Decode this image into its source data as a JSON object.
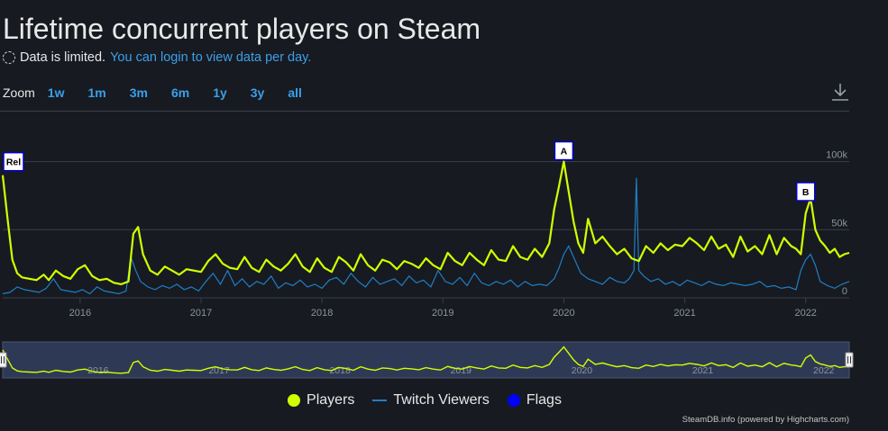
{
  "page": {
    "title": "Lifetime concurrent players on Steam",
    "limited_text": "Data is limited.",
    "login_link": "You can login to view data per day."
  },
  "zoom": {
    "label": "Zoom",
    "buttons": [
      "1w",
      "1m",
      "3m",
      "6m",
      "1y",
      "3y",
      "all"
    ]
  },
  "legend": {
    "players": "Players",
    "twitch": "Twitch Viewers",
    "flags": "Flags"
  },
  "credits": "SteamDB.info (powered by Highcharts.com)",
  "colors": {
    "background": "#171a21",
    "players": "#d2ff00",
    "twitch": "#1f7fc4",
    "flags_dot": "#0000ff",
    "link": "#3ba0e8",
    "grid": "#3a3f48"
  },
  "chart_data": {
    "type": "line",
    "title": "Lifetime concurrent players on Steam",
    "xlabel": "",
    "ylabel": "",
    "ylim": [
      0,
      105000
    ],
    "xlim": [
      2015.36,
      2022.36
    ],
    "y_ticks": [
      {
        "value": 0,
        "label": "0"
      },
      {
        "value": 50000,
        "label": "50k"
      },
      {
        "value": 100000,
        "label": "100k"
      }
    ],
    "x_ticks": [
      {
        "value": 2016,
        "label": "2016"
      },
      {
        "value": 2017,
        "label": "2017"
      },
      {
        "value": 2018,
        "label": "2018"
      },
      {
        "value": 2019,
        "label": "2019"
      },
      {
        "value": 2020,
        "label": "2020"
      },
      {
        "value": 2021,
        "label": "2021"
      },
      {
        "value": 2022,
        "label": "2022"
      }
    ],
    "series": [
      {
        "name": "Players",
        "x": [
          2015.36,
          2015.4,
          2015.44,
          2015.48,
          2015.52,
          2015.58,
          2015.64,
          2015.7,
          2015.74,
          2015.8,
          2015.86,
          2015.92,
          2015.98,
          2016.04,
          2016.1,
          2016.16,
          2016.22,
          2016.28,
          2016.34,
          2016.4,
          2016.42,
          2016.44,
          2016.48,
          2016.52,
          2016.58,
          2016.64,
          2016.7,
          2016.76,
          2016.82,
          2016.88,
          2016.94,
          2017.0,
          2017.06,
          2017.12,
          2017.18,
          2017.24,
          2017.3,
          2017.36,
          2017.42,
          2017.48,
          2017.54,
          2017.6,
          2017.66,
          2017.72,
          2017.78,
          2017.84,
          2017.9,
          2017.96,
          2018.02,
          2018.08,
          2018.14,
          2018.2,
          2018.26,
          2018.32,
          2018.38,
          2018.44,
          2018.5,
          2018.56,
          2018.62,
          2018.68,
          2018.74,
          2018.8,
          2018.86,
          2018.92,
          2018.98,
          2019.04,
          2019.1,
          2019.16,
          2019.22,
          2019.28,
          2019.34,
          2019.4,
          2019.46,
          2019.52,
          2019.58,
          2019.64,
          2019.7,
          2019.76,
          2019.82,
          2019.88,
          2019.92,
          2019.96,
          2020.0,
          2020.04,
          2020.08,
          2020.12,
          2020.16,
          2020.2,
          2020.26,
          2020.32,
          2020.38,
          2020.44,
          2020.5,
          2020.56,
          2020.62,
          2020.68,
          2020.74,
          2020.8,
          2020.86,
          2020.92,
          2020.98,
          2021.04,
          2021.1,
          2021.16,
          2021.22,
          2021.28,
          2021.34,
          2021.4,
          2021.46,
          2021.52,
          2021.58,
          2021.64,
          2021.7,
          2021.76,
          2021.82,
          2021.88,
          2021.92,
          2021.96,
          2022.0,
          2022.04,
          2022.08,
          2022.12,
          2022.16,
          2022.2,
          2022.24,
          2022.28,
          2022.32,
          2022.36
        ],
        "values": [
          90000,
          58000,
          28000,
          18000,
          15000,
          14000,
          13000,
          17000,
          13000,
          20000,
          16000,
          14000,
          21000,
          24000,
          16000,
          13000,
          14000,
          11000,
          10000,
          12000,
          30000,
          47000,
          52000,
          32000,
          20000,
          17000,
          23000,
          20000,
          17000,
          21000,
          20000,
          19000,
          27000,
          32000,
          25000,
          22000,
          21000,
          30000,
          22000,
          19000,
          28000,
          23000,
          20000,
          25000,
          32000,
          23000,
          19000,
          29000,
          22000,
          19000,
          30000,
          26000,
          20000,
          32000,
          24000,
          20000,
          28000,
          26000,
          21000,
          27000,
          25000,
          22000,
          29000,
          24000,
          21000,
          33000,
          27000,
          24000,
          33000,
          28000,
          24000,
          35000,
          28000,
          27000,
          38000,
          30000,
          28000,
          36000,
          30000,
          40000,
          65000,
          82000,
          100000,
          78000,
          56000,
          40000,
          33000,
          58000,
          40000,
          45000,
          38000,
          32000,
          36000,
          29000,
          27000,
          38000,
          33000,
          40000,
          35000,
          39000,
          38000,
          44000,
          40000,
          35000,
          45000,
          36000,
          39000,
          30000,
          45000,
          34000,
          38000,
          32000,
          46000,
          32000,
          44000,
          38000,
          36000,
          32000,
          62000,
          73000,
          50000,
          42000,
          38000,
          33000,
          36000,
          30000,
          32000,
          33000
        ]
      },
      {
        "name": "Twitch Viewers",
        "x": [
          2015.36,
          2015.42,
          2015.48,
          2015.54,
          2015.6,
          2015.66,
          2015.72,
          2015.78,
          2015.84,
          2015.9,
          2015.96,
          2016.02,
          2016.08,
          2016.14,
          2016.2,
          2016.26,
          2016.32,
          2016.38,
          2016.42,
          2016.46,
          2016.5,
          2016.56,
          2016.62,
          2016.68,
          2016.74,
          2016.8,
          2016.86,
          2016.92,
          2016.98,
          2017.04,
          2017.1,
          2017.16,
          2017.22,
          2017.28,
          2017.34,
          2017.4,
          2017.46,
          2017.52,
          2017.58,
          2017.64,
          2017.7,
          2017.76,
          2017.82,
          2017.88,
          2017.94,
          2018.0,
          2018.06,
          2018.12,
          2018.18,
          2018.24,
          2018.3,
          2018.36,
          2018.42,
          2018.48,
          2018.54,
          2018.6,
          2018.66,
          2018.72,
          2018.78,
          2018.84,
          2018.9,
          2018.96,
          2019.02,
          2019.08,
          2019.14,
          2019.2,
          2019.26,
          2019.32,
          2019.38,
          2019.44,
          2019.5,
          2019.56,
          2019.62,
          2019.68,
          2019.74,
          2019.8,
          2019.86,
          2019.92,
          2019.96,
          2020.0,
          2020.04,
          2020.08,
          2020.14,
          2020.2,
          2020.26,
          2020.32,
          2020.38,
          2020.44,
          2020.5,
          2020.54,
          2020.58,
          2020.6,
          2020.62,
          2020.66,
          2020.72,
          2020.78,
          2020.84,
          2020.9,
          2020.96,
          2021.02,
          2021.08,
          2021.14,
          2021.2,
          2021.26,
          2021.32,
          2021.38,
          2021.44,
          2021.5,
          2021.56,
          2021.62,
          2021.68,
          2021.74,
          2021.8,
          2021.86,
          2021.92,
          2021.96,
          2022.0,
          2022.04,
          2022.08,
          2022.12,
          2022.18,
          2022.24,
          2022.3,
          2022.36
        ],
        "values": [
          3000,
          4000,
          8000,
          6000,
          5000,
          4000,
          7000,
          14000,
          6000,
          5000,
          4000,
          6000,
          3000,
          8000,
          5000,
          4000,
          3000,
          5000,
          30000,
          20000,
          12000,
          8000,
          6000,
          9000,
          7000,
          10000,
          6000,
          8000,
          5000,
          12000,
          18000,
          10000,
          20000,
          9000,
          14000,
          8000,
          12000,
          10000,
          16000,
          7000,
          11000,
          9000,
          13000,
          8000,
          10000,
          7000,
          13000,
          15000,
          10000,
          18000,
          12000,
          8000,
          15000,
          10000,
          12000,
          14000,
          9000,
          16000,
          11000,
          13000,
          8000,
          20000,
          12000,
          10000,
          15000,
          9000,
          18000,
          11000,
          9000,
          12000,
          10000,
          13000,
          8000,
          12000,
          9000,
          10000,
          9000,
          14000,
          22000,
          32000,
          38000,
          30000,
          18000,
          14000,
          12000,
          10000,
          15000,
          12000,
          11000,
          14000,
          20000,
          88000,
          20000,
          16000,
          12000,
          14000,
          10000,
          12000,
          9000,
          13000,
          11000,
          9000,
          12000,
          10000,
          9000,
          11000,
          10000,
          9000,
          10000,
          12000,
          8000,
          9000,
          7000,
          8000,
          6000,
          20000,
          28000,
          32000,
          24000,
          12000,
          9000,
          7000,
          10000,
          12000
        ]
      }
    ],
    "flags": [
      {
        "label": "Rel",
        "x": 2015.36,
        "value": 92000
      },
      {
        "label": "A",
        "x": 2020.0,
        "value": 100000
      },
      {
        "label": "B",
        "x": 2022.0,
        "value": 70000
      }
    ],
    "navigator": {
      "x_labels": [
        "2016",
        "2017",
        "2018",
        "2019",
        "2020",
        "2021",
        "2022"
      ]
    }
  }
}
